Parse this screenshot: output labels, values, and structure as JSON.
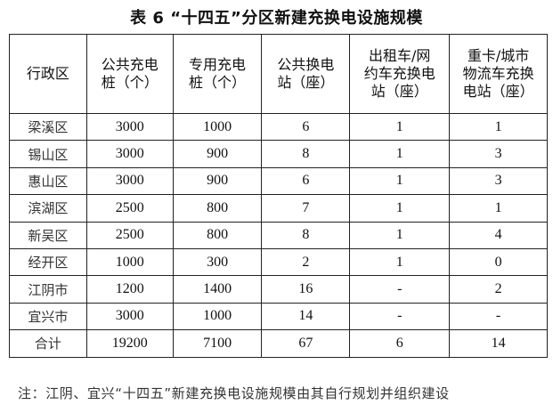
{
  "title": "表 6 “十四五”分区新建充换电设施规模",
  "table": {
    "headers": [
      "行政区",
      "公共充电桩（个）",
      "专用充电桩（个）",
      "公共换电站（座）",
      "出租车/网约车充换电站（座）",
      "重卡/城市物流车充换电站（座）"
    ],
    "rows": [
      [
        "梁溪区",
        "3000",
        "1000",
        "6",
        "1",
        "1"
      ],
      [
        "锡山区",
        "3000",
        "900",
        "8",
        "1",
        "3"
      ],
      [
        "惠山区",
        "3000",
        "900",
        "6",
        "1",
        "3"
      ],
      [
        "滨湖区",
        "2500",
        "800",
        "7",
        "1",
        "1"
      ],
      [
        "新吴区",
        "2500",
        "800",
        "8",
        "1",
        "4"
      ],
      [
        "经开区",
        "1000",
        "300",
        "2",
        "1",
        "0"
      ],
      [
        "江阴市",
        "1200",
        "1400",
        "16",
        "-",
        "2"
      ],
      [
        "宜兴市",
        "3000",
        "1000",
        "14",
        "-",
        "-"
      ],
      [
        "合计",
        "19200",
        "7100",
        "67",
        "6",
        "14"
      ]
    ]
  },
  "note": "注：江阴、宜兴“十四五”新建充换电设施规模由其自行规划并组织建设"
}
